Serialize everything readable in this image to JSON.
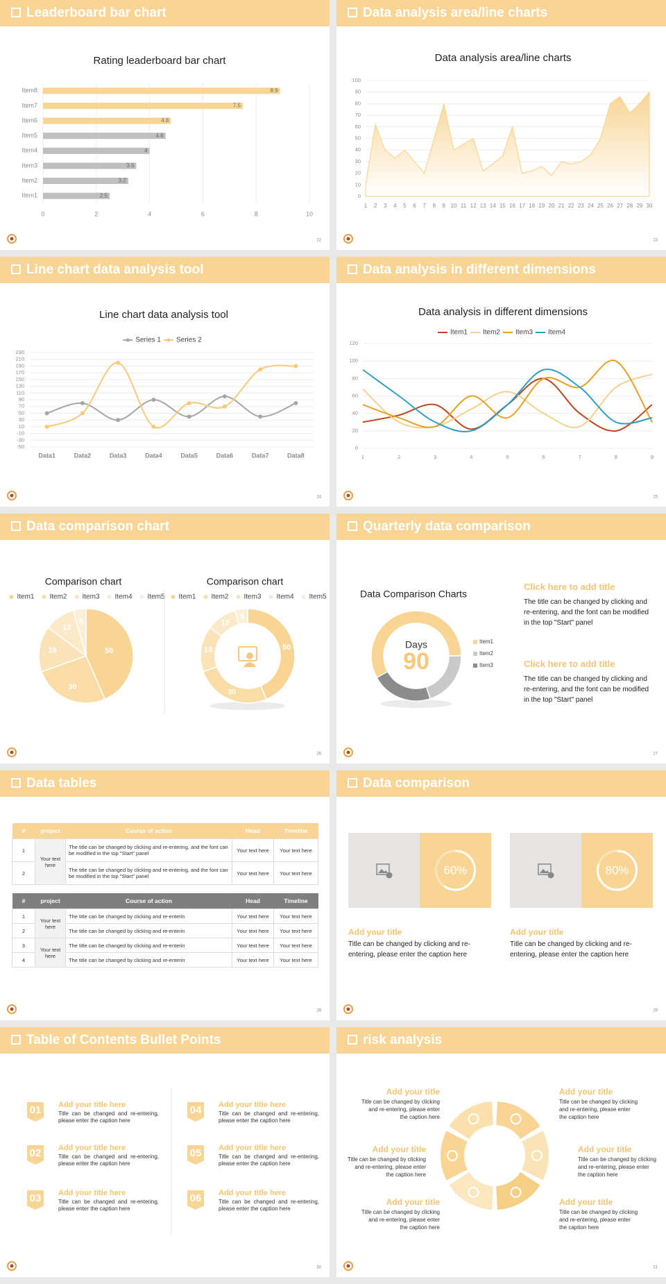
{
  "slides": [
    {
      "title": "Leaderboard bar chart",
      "page": 22
    },
    {
      "title": "Data analysis area/line charts",
      "page": 23
    },
    {
      "title": "Line chart data analysis tool",
      "page": 24
    },
    {
      "title": "Data analysis in different dimensions",
      "page": 25
    },
    {
      "title": "Data comparison chart",
      "page": 26
    },
    {
      "title": "Quarterly data comparison",
      "page": 27
    },
    {
      "title": "Data tables",
      "page": 28
    },
    {
      "title": "Data comparison",
      "page": 29
    },
    {
      "title": "Table of Contents Bullet Points",
      "page": 30
    },
    {
      "title": "risk analysis",
      "page": 31
    }
  ],
  "chart_data": [
    {
      "type": "hbar",
      "title": "Rating leaderboard bar chart",
      "categories": [
        "Item1",
        "Item2",
        "Item3",
        "Item4",
        "Item5",
        "Item6",
        "Item7",
        "Item8"
      ],
      "values": [
        2.5,
        3.2,
        3.5,
        4,
        4.6,
        4.8,
        7.5,
        8.9
      ],
      "colors": [
        "#bfbfbf",
        "#bfbfbf",
        "#bfbfbf",
        "#bfbfbf",
        "#bfbfbf",
        "#f8d594",
        "#f8d594",
        "#f8d594"
      ],
      "xlim": [
        0,
        10
      ],
      "xticks": [
        0,
        2,
        4,
        6,
        8,
        10
      ],
      "grid": true
    },
    {
      "type": "area",
      "title": "Data analysis area/line charts",
      "x": [
        1,
        2,
        3,
        4,
        5,
        6,
        7,
        8,
        9,
        10,
        11,
        12,
        13,
        14,
        15,
        16,
        17,
        18,
        19,
        20,
        21,
        22,
        23,
        24,
        25,
        26,
        27,
        28,
        29,
        30
      ],
      "values": [
        10,
        62,
        40,
        33,
        40,
        30,
        20,
        50,
        80,
        40,
        45,
        50,
        22,
        28,
        35,
        60,
        20,
        22,
        26,
        18,
        30,
        28,
        30,
        36,
        50,
        80,
        86,
        72,
        80,
        90
      ],
      "color": "#f8d594",
      "xlim": [
        1,
        30
      ],
      "ylim": [
        0,
        100
      ],
      "yticks": [
        0,
        10,
        20,
        30,
        40,
        50,
        60,
        70,
        80,
        90,
        100
      ],
      "grid": true
    },
    {
      "type": "line",
      "title": "Line chart data analysis tool",
      "categories": [
        "Data1",
        "Data2",
        "Data3",
        "Data4",
        "Data5",
        "Data6",
        "Data7",
        "Data8"
      ],
      "series": [
        {
          "name": "Series 1",
          "color": "#a6a6a6",
          "values": [
            50,
            80,
            30,
            90,
            40,
            100,
            40,
            80
          ]
        },
        {
          "name": "Series 2",
          "color": "#f8c97a",
          "values": [
            10,
            50,
            200,
            10,
            80,
            70,
            180,
            190
          ]
        }
      ],
      "ylim": [
        -50,
        230
      ],
      "yticks": [
        -50,
        -30,
        -10,
        10,
        30,
        50,
        70,
        90,
        110,
        130,
        150,
        170,
        190,
        210,
        230
      ],
      "grid": true,
      "legend": "top",
      "smooth": true,
      "markers": true
    },
    {
      "type": "line",
      "title": "Data analysis in different dimensions",
      "x": [
        1,
        2,
        3,
        4,
        5,
        6,
        7,
        8,
        9
      ],
      "xlim": [
        1,
        9
      ],
      "series": [
        {
          "name": "Item1",
          "color": "#c0441a",
          "values": [
            30,
            38,
            50,
            22,
            50,
            80,
            40,
            20,
            50
          ]
        },
        {
          "name": "Item2",
          "color": "#f5d08d",
          "values": [
            68,
            30,
            25,
            45,
            65,
            40,
            25,
            70,
            85
          ]
        },
        {
          "name": "Item3",
          "color": "#e8a020",
          "values": [
            50,
            35,
            25,
            60,
            35,
            80,
            70,
            100,
            30
          ]
        },
        {
          "name": "Item4",
          "color": "#2aa0c8",
          "values": [
            90,
            60,
            30,
            20,
            50,
            90,
            70,
            30,
            35
          ]
        }
      ],
      "ylim": [
        0,
        120
      ],
      "yticks": [
        0,
        20,
        40,
        60,
        80,
        100,
        120
      ],
      "grid": true,
      "legend": "top",
      "smooth": true
    },
    {
      "type": "pie",
      "title": "Comparison chart",
      "categories": [
        "Item1",
        "Item2",
        "Item3",
        "Item4",
        "Item5"
      ],
      "values": [
        50,
        30,
        18,
        12,
        5
      ],
      "colors": [
        "#f8d594",
        "#f9dca6",
        "#fae3b8",
        "#fbe9c9",
        "#fcefd8"
      ],
      "legend": "top",
      "show_values": true
    },
    {
      "type": "donut",
      "title": "Comparison chart",
      "categories": [
        "Item1",
        "Item2",
        "Item3",
        "Item4",
        "Item5"
      ],
      "values": [
        50,
        30,
        18,
        12,
        5
      ],
      "colors": [
        "#f8d594",
        "#f9dca6",
        "#fae3b8",
        "#fbe9c9",
        "#fcefd8"
      ],
      "legend": "top",
      "show_values": true
    },
    {
      "type": "donut",
      "title": "Data Comparison Charts",
      "categories": [
        "Item1",
        "Item2",
        "Item3"
      ],
      "values": [
        58,
        20,
        22
      ],
      "colors": [
        "#f8d594",
        "#c9c9c9",
        "#8c8c8c"
      ],
      "legend": "right",
      "center_label": "Days",
      "center_value": 90
    }
  ],
  "quarterly": {
    "blocks": [
      {
        "title": "Click here to add title",
        "text": "The title can be changed by clicking and re-entering, and the font can be modified in the top \"Start\" panel"
      },
      {
        "title": "Click here to add title",
        "text": "The title can be changed by clicking and re-entering, and the font can be modified in the top \"Start\" panel"
      }
    ]
  },
  "tables": [
    {
      "header": [
        "#",
        "project",
        "Course of action",
        "Head",
        "Timeline"
      ],
      "groups": [
        {
          "project": "Your text here",
          "rows": [
            [
              "1",
              "The title can be changed by clicking and re-entering, and the font can be modified in the top \"Start\" panel",
              "Your text here",
              "Your text here"
            ],
            [
              "2",
              "The title can be changed by clicking and re-entering, and the font can be modified in the top \"Start\" panel",
              "Your text here",
              "Your text here"
            ]
          ]
        }
      ]
    },
    {
      "header": [
        "#",
        "project",
        "Course of action",
        "Head",
        "Timeline"
      ],
      "groups": [
        {
          "project": "Your text here",
          "rows": [
            [
              "1",
              "The title can be changed by clicking and re-enterin",
              "Your text here",
              "Your text here"
            ],
            [
              "2",
              "The title can be changed by clicking and re-enterin",
              "Your text here",
              "Your text here"
            ]
          ]
        },
        {
          "project": "Your text here",
          "rows": [
            [
              "3",
              "The title can be changed by clicking and re-enterin",
              "Your text here",
              "Your text here"
            ],
            [
              "4",
              "The title can be changed by clicking and re-enterin",
              "Your text here",
              "Your text here"
            ]
          ]
        }
      ]
    }
  ],
  "comparison": [
    {
      "value": 60,
      "label": "60%",
      "title": "Add your title",
      "text": "Title can be changed by clicking and re-entering, please enter the caption here"
    },
    {
      "value": 80,
      "label": "80%",
      "title": "Add your title",
      "text": "Title can be changed by clicking and re-entering, please enter the caption here"
    }
  ],
  "toc": [
    {
      "number": "01",
      "title": "Add your title here",
      "text": "Title can be changed and re-entering, please enter the caption here"
    },
    {
      "number": "02",
      "title": "Add your title here",
      "text": "Title can be changed and re-entering, please enter the caption here"
    },
    {
      "number": "03",
      "title": "Add your title here",
      "text": "Title can be changed and re-entering, please enter the caption here"
    },
    {
      "number": "04",
      "title": "Add your title here",
      "text": "Title can be changed and re-entering, please enter the caption here"
    },
    {
      "number": "05",
      "title": "Add your title here",
      "text": "Title can be changed and re-entering, please enter the caption here"
    },
    {
      "number": "06",
      "title": "Add your title here",
      "text": "Title can be changed and re-entering, please enter the caption here"
    }
  ],
  "risk": [
    {
      "title": "Add your title",
      "text": "Title can be changed by clicking and re-entering, please enter the caption here"
    },
    {
      "title": "Add your title",
      "text": "Title can be changed by clicking and re-entering, please enter the caption here"
    },
    {
      "title": "Add your title",
      "text": "Title can be changed by clicking and re-entering, please enter the caption here"
    },
    {
      "title": "Add your title",
      "text": "Title can be changed by clicking and re-entering, please enter the caption here"
    },
    {
      "title": "Add your title",
      "text": "Title can be changed by clicking and re-entering, please enter the caption here"
    },
    {
      "title": "Add your title",
      "text": "Title can be changed by clicking and re-entering, please enter the caption here"
    }
  ]
}
